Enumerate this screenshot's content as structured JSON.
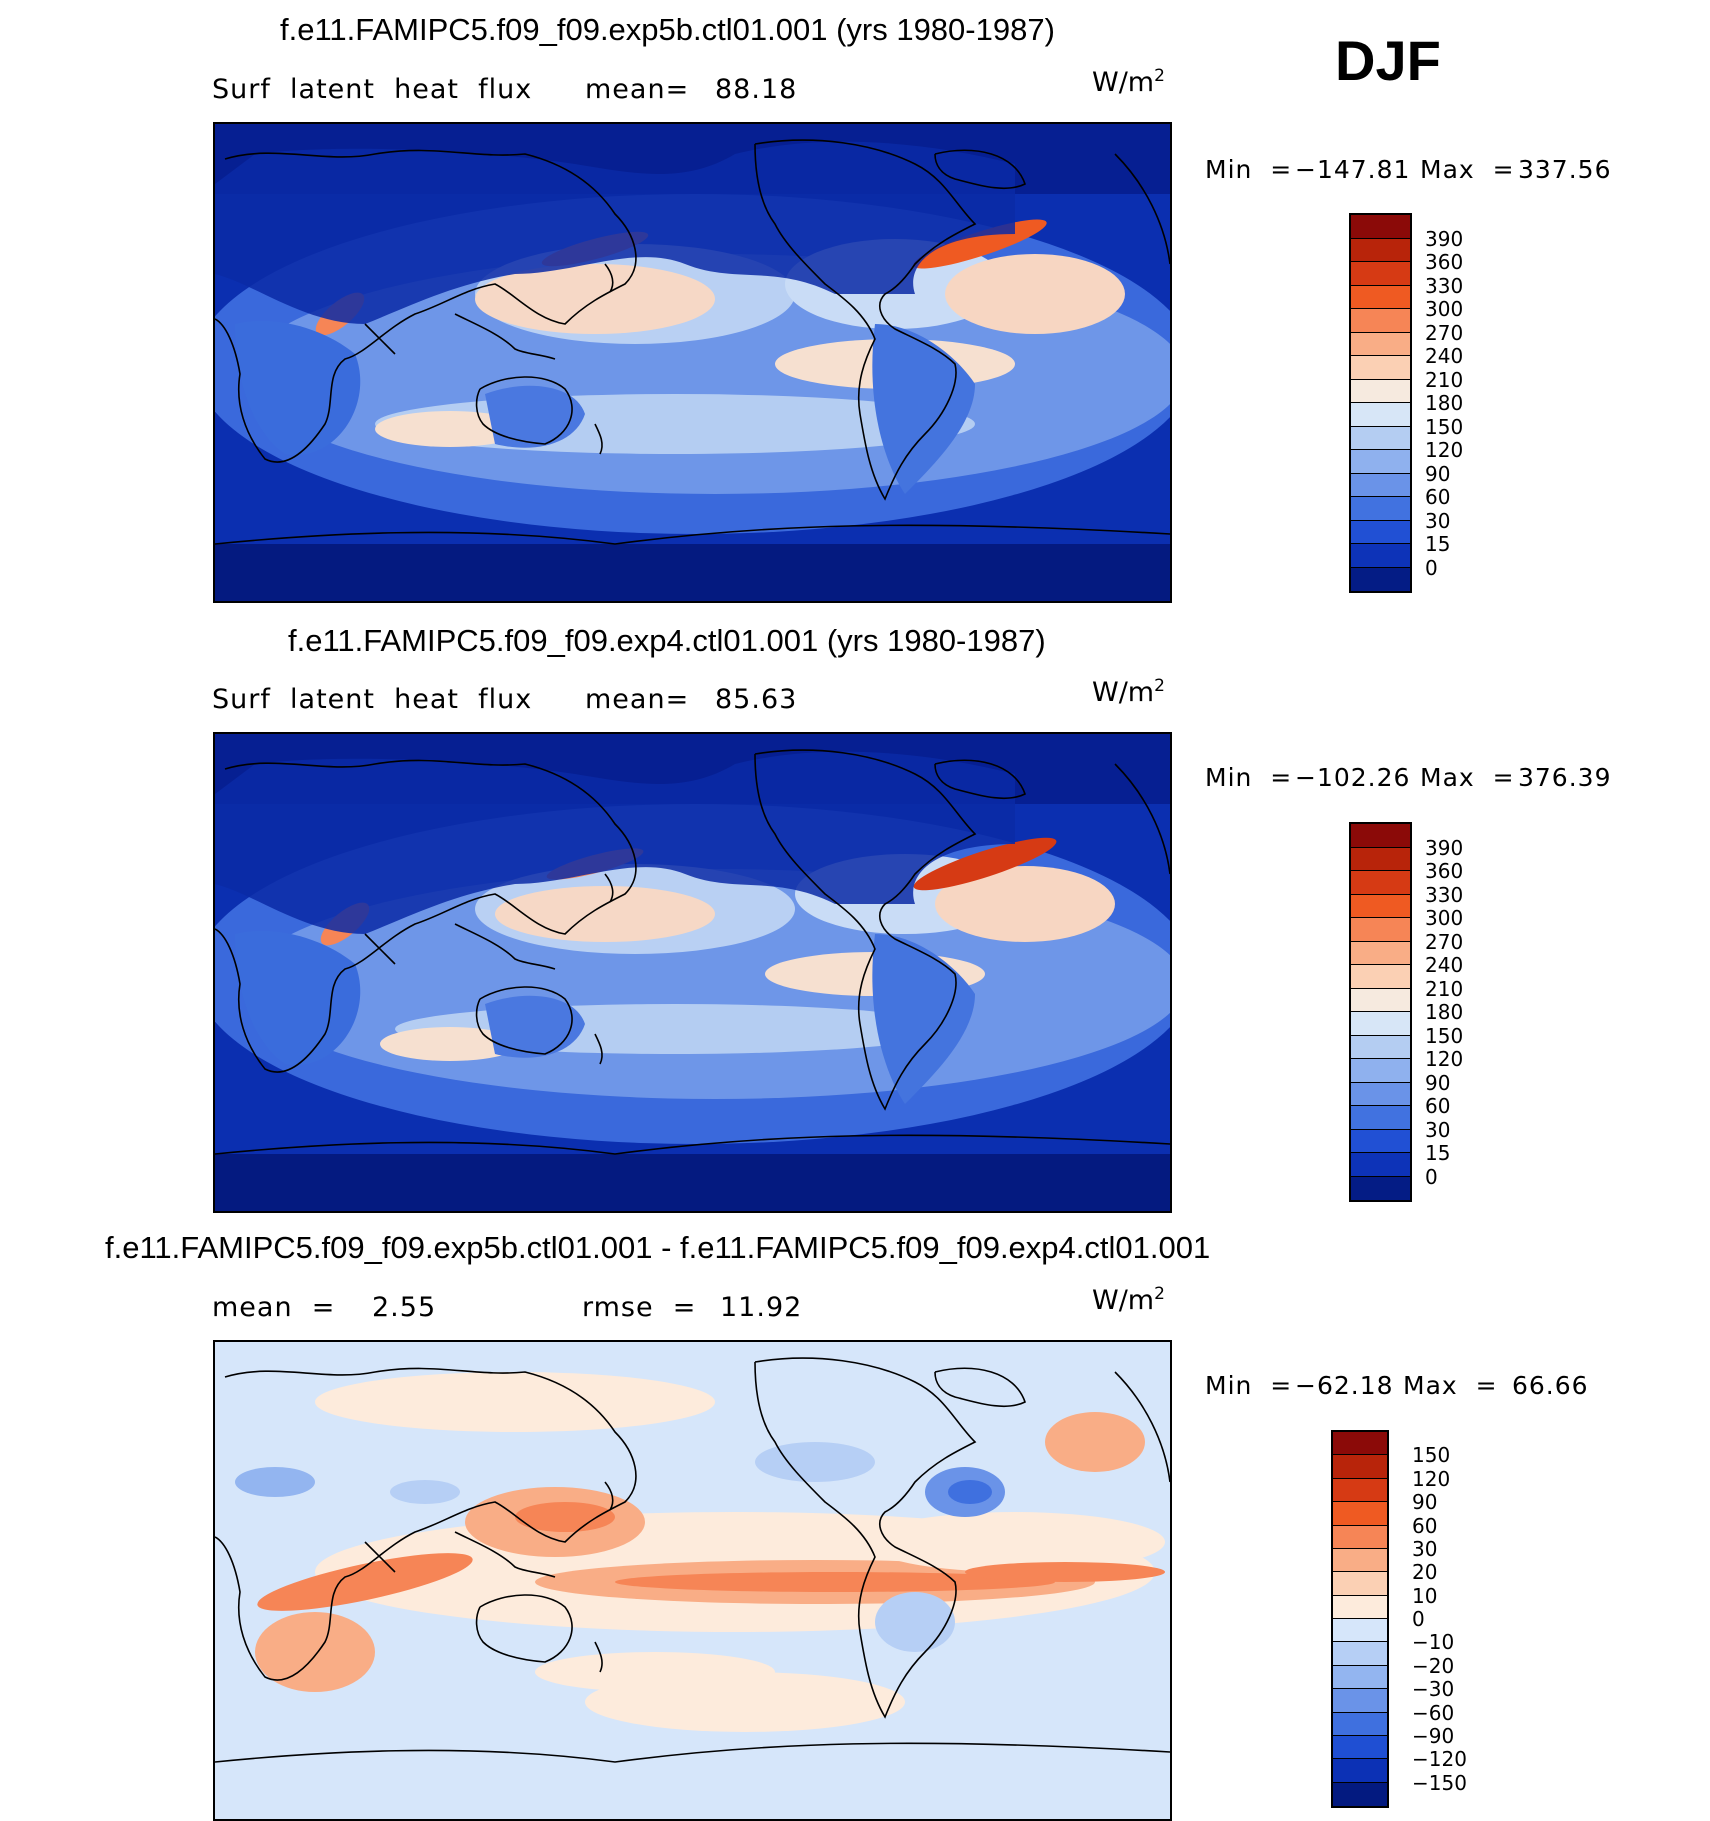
{
  "season": "DJF",
  "panels": [
    {
      "title": "f.e11.FAMIPC5.f09_f09.exp5b.ctl01.001 (yrs 1980-1987)",
      "left_label": "Surf  latent  heat  flux",
      "stat_label": "mean=",
      "stat_value": "88.18",
      "units": "W/m",
      "units_sup": "2",
      "min_label": "Min  =",
      "min_value": "−147.81",
      "max_label": "Max  =",
      "max_value": "337.56",
      "colorbar": {
        "labels": [
          "390",
          "360",
          "330",
          "300",
          "270",
          "240",
          "210",
          "180",
          "150",
          "120",
          "90",
          "60",
          "30",
          "15",
          "0"
        ],
        "colors": [
          "#8b0a08",
          "#b8240a",
          "#d63a14",
          "#ef5a22",
          "#f68556",
          "#f9ad86",
          "#fbd0b4",
          "#f6eadf",
          "#d7e6f7",
          "#b4cdf2",
          "#8fb1ee",
          "#6a93e8",
          "#4172e0",
          "#2150d4",
          "#0d33b8",
          "#041c85"
        ]
      }
    },
    {
      "title": "f.e11.FAMIPC5.f09_f09.exp4.ctl01.001 (yrs 1980-1987)",
      "left_label": "Surf  latent  heat  flux",
      "stat_label": "mean=",
      "stat_value": "85.63",
      "units": "W/m",
      "units_sup": "2",
      "min_label": "Min  =",
      "min_value": "−102.26",
      "max_label": "Max  =",
      "max_value": "376.39",
      "colorbar": {
        "labels": [
          "390",
          "360",
          "330",
          "300",
          "270",
          "240",
          "210",
          "180",
          "150",
          "120",
          "90",
          "60",
          "30",
          "15",
          "0"
        ],
        "colors": [
          "#8b0a08",
          "#b8240a",
          "#d63a14",
          "#ef5a22",
          "#f68556",
          "#f9ad86",
          "#fbd0b4",
          "#f6eadf",
          "#d7e6f7",
          "#b4cdf2",
          "#8fb1ee",
          "#6a93e8",
          "#4172e0",
          "#2150d4",
          "#0d33b8",
          "#041c85"
        ]
      }
    },
    {
      "title": "f.e11.FAMIPC5.f09_f09.exp5b.ctl01.001 - f.e11.FAMIPC5.f09_f09.exp4.ctl01.001",
      "left_label": "mean  =",
      "left_value": "2.55",
      "stat_label": "rmse  =",
      "stat_value": "11.92",
      "units": "W/m",
      "units_sup": "2",
      "min_label": "Min  =",
      "min_value": "−62.18",
      "max_label": "Max  =",
      "max_value": "66.66",
      "colorbar": {
        "labels": [
          "150",
          "120",
          "90",
          "60",
          "30",
          "20",
          "10",
          "0",
          "−10",
          "−20",
          "−30",
          "−60",
          "−90",
          "−120",
          "−150"
        ],
        "colors": [
          "#8b0a08",
          "#b8240a",
          "#d63a14",
          "#ef5a22",
          "#f68556",
          "#f9ad86",
          "#fbd0b4",
          "#fdebdc",
          "#d6e6fa",
          "#b6cff5",
          "#93b5f0",
          "#6a93e8",
          "#3f70df",
          "#1f4fd3",
          "#0c31b5",
          "#031a80"
        ]
      }
    }
  ]
}
